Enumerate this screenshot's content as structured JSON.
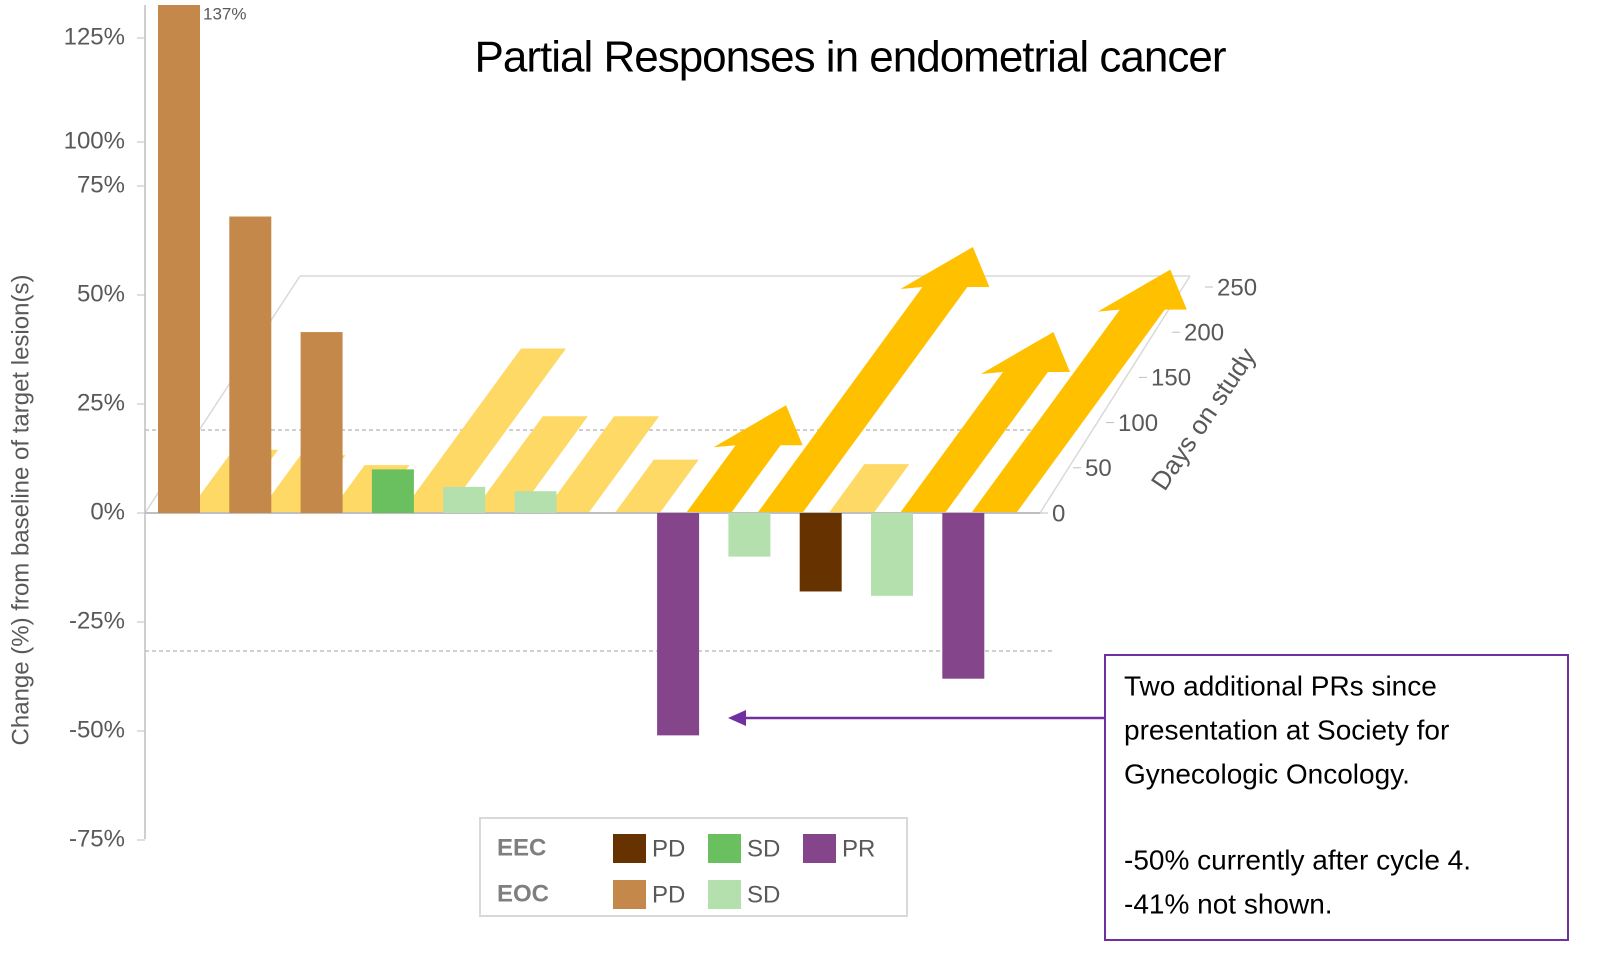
{
  "chart_data": {
    "type": "bar",
    "title": "Partial Responses in endometrial cancer",
    "y_axis_label": "Change (%)  from baseline of target lesion(s)",
    "y2_axis_label": "Days on study",
    "values": [
      137,
      68,
      41.5,
      10,
      6,
      5,
      null,
      -51,
      -10,
      -18,
      -19,
      -38
    ],
    "value_labels": [
      "137%",
      null,
      null,
      null,
      null,
      null,
      null,
      null,
      null,
      null,
      null,
      null
    ],
    "bar_colors": [
      "#c4884b",
      "#c4884b",
      "#c4884b",
      "#6abf5e",
      "#b3e0ad",
      "#b3e0ad",
      null,
      "#84458a",
      "#b3e0ad",
      "#663300",
      "#b3e0ad",
      "#84458a"
    ],
    "days": [
      70,
      64,
      53,
      182,
      107,
      107,
      59,
      75,
      250,
      54,
      156,
      225
    ],
    "days_ongoing": [
      false,
      false,
      false,
      false,
      false,
      false,
      false,
      true,
      true,
      false,
      true,
      true
    ],
    "days_colors": {
      "ongoing": "#ffc000",
      "ended": "#ffd966"
    },
    "ylim": [
      -75,
      137
    ],
    "yticks": [
      {
        "value": 125,
        "label": "125%"
      },
      {
        "value": 100,
        "label": "100%"
      },
      {
        "value": 75,
        "label": "75%"
      },
      {
        "value": 50,
        "label": "50%"
      },
      {
        "value": 25,
        "label": "25%"
      },
      {
        "value": 0,
        "label": "0%"
      },
      {
        "value": -25,
        "label": "-25%"
      },
      {
        "value": -50,
        "label": "-50%"
      },
      {
        "value": -75,
        "label": "-75%"
      }
    ],
    "y2lim": [
      0,
      250
    ],
    "y2ticks": [
      0,
      50,
      100,
      150,
      200,
      250
    ],
    "legend": {
      "groups": [
        {
          "label": "EEC",
          "items": [
            {
              "label": "PD",
              "color": "#663300"
            },
            {
              "label": "SD",
              "color": "#6abf5e"
            },
            {
              "label": "PR",
              "color": "#84458a"
            }
          ]
        },
        {
          "label": "EOC",
          "items": [
            {
              "label": "PD",
              "color": "#c4884b"
            },
            {
              "label": "SD",
              "color": "#b3e0ad"
            }
          ]
        }
      ]
    },
    "annotation": {
      "lines": [
        "Two additional PRs since",
        "presentation at Society for",
        "Gynecologic Oncology.",
        "-50% currently after cycle 4.",
        "-41% not shown."
      ],
      "color": "#7030a0"
    }
  }
}
